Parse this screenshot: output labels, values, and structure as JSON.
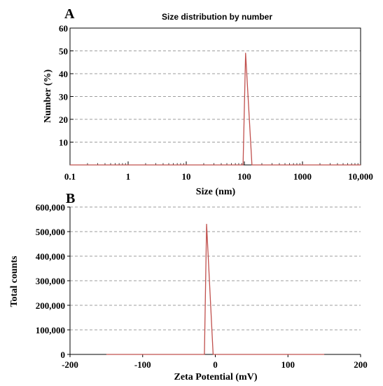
{
  "chart_data": [
    {
      "panel": "A",
      "type": "line",
      "title": "Size distribution by number",
      "xlabel": "Size (nm)",
      "ylabel": "Number (%)",
      "xscale": "log",
      "xlim": [
        0.1,
        10000
      ],
      "ylim": [
        0,
        60
      ],
      "xticks": [
        0.1,
        1,
        10,
        100,
        1000,
        10000
      ],
      "xtick_labels": [
        "0.1",
        "1",
        "10",
        "100",
        "1000",
        "10,000"
      ],
      "yticks": [
        10,
        20,
        30,
        40,
        50,
        60
      ],
      "ytick_labels": [
        "10",
        "20",
        "30",
        "40",
        "50",
        "60"
      ],
      "grid": "horizontal dashed",
      "line_color": "#c0504d",
      "series": [
        {
          "x": [
            0.1,
            95,
            105,
            135,
            10000
          ],
          "y": [
            0,
            0,
            49,
            0,
            0
          ]
        }
      ]
    },
    {
      "panel": "B",
      "type": "line",
      "title": "",
      "xlabel": "Zeta Potential (mV)",
      "ylabel": "Total counts",
      "xlim": [
        -200,
        200
      ],
      "ylim": [
        0,
        600000
      ],
      "xticks": [
        -200,
        -100,
        0,
        100,
        200
      ],
      "xtick_labels": [
        "-200",
        "-100",
        "0",
        "100",
        "200"
      ],
      "yticks": [
        0,
        100000,
        200000,
        300000,
        400000,
        500000,
        600000
      ],
      "ytick_labels": [
        "0",
        "100,000",
        "200,000",
        "300,000",
        "400,000",
        "500,000",
        "600,000"
      ],
      "grid": "horizontal dashed",
      "line_color": "#c0504d",
      "series": [
        {
          "x": [
            -150,
            -15,
            -12,
            -3,
            150
          ],
          "y": [
            0,
            0,
            530000,
            0,
            0
          ]
        }
      ]
    }
  ]
}
